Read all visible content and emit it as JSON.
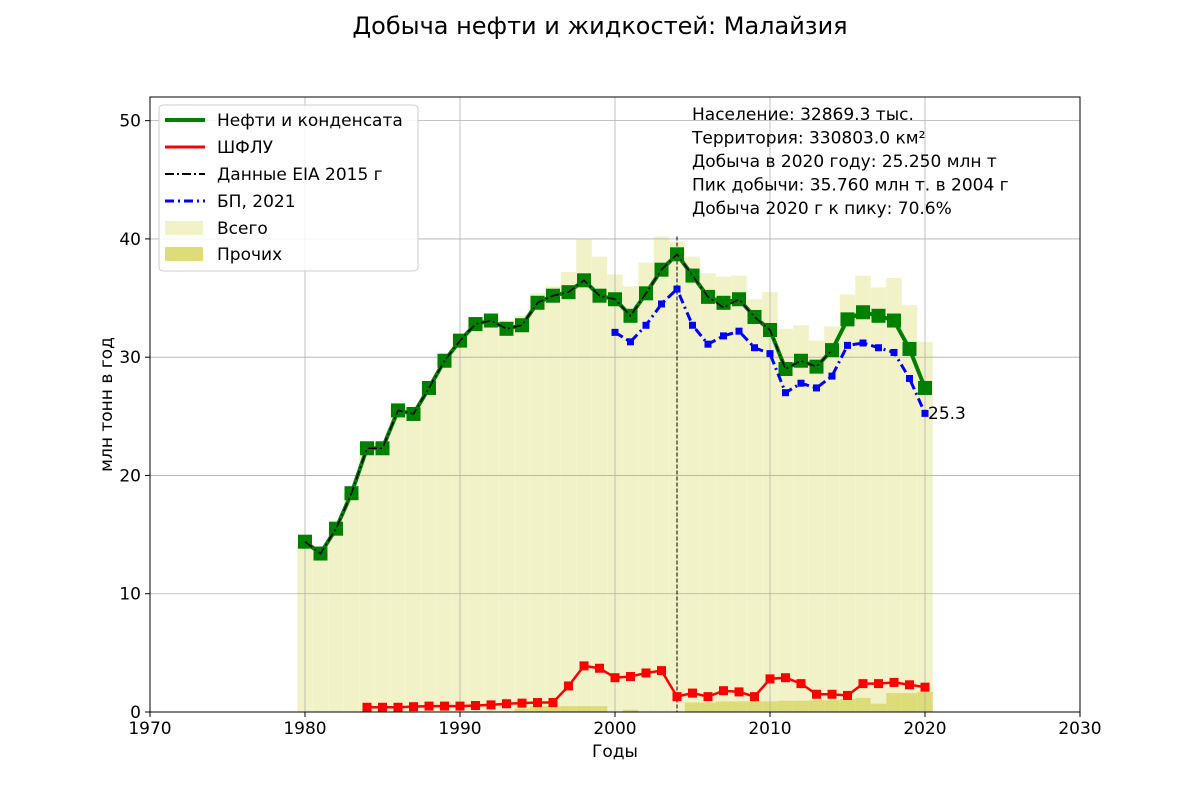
{
  "chart_data": {
    "type": "line",
    "title": "Добыча нефти и жидкостей: Малайзия",
    "xlabel": "Годы",
    "ylabel": "млн тонн в год",
    "xlim": [
      1970,
      2030
    ],
    "ylim": [
      0,
      52
    ],
    "xticks": [
      "1970",
      "1980",
      "1990",
      "2000",
      "2010",
      "2020",
      "2030"
    ],
    "yticks": [
      "0",
      "10",
      "20",
      "30",
      "40",
      "50"
    ],
    "grid": true,
    "legend_position": "top-left",
    "colors": {
      "oil": "#008000",
      "ngl": "#ff0000",
      "eia": "#000000",
      "bp": "#0000ff",
      "total": "#f2f2c8",
      "other": "#dcdc78",
      "peak_line": "#000000"
    },
    "legend": [
      {
        "key": "oil",
        "label": "Нефти и конденсата"
      },
      {
        "key": "ngl",
        "label": "ШФЛУ"
      },
      {
        "key": "eia",
        "label": "Данные EIA 2015 г"
      },
      {
        "key": "bp",
        "label": "БП, 2021"
      },
      {
        "key": "total",
        "label": "Всего"
      },
      {
        "key": "other",
        "label": "Прочих"
      }
    ],
    "info_lines": [
      "Население: 32869.3 тыс.",
      "Территория: 330803.0 км²",
      "Добыча в 2020 году: 25.250 млн т",
      "Пик добычи: 35.760 млн т. в 2004 г",
      "Добыча 2020 г к пику: 70.6%"
    ],
    "annotation": {
      "x": 2020,
      "y": 25.3,
      "text": "25.3"
    },
    "peak_year": 2004,
    "series": {
      "oil": {
        "x": [
          1980,
          1981,
          1982,
          1983,
          1984,
          1985,
          1986,
          1987,
          1988,
          1989,
          1990,
          1991,
          1992,
          1993,
          1994,
          1995,
          1996,
          1997,
          1998,
          1999,
          2000,
          2001,
          2002,
          2003,
          2004,
          2005,
          2006,
          2007,
          2008,
          2009,
          2010,
          2011,
          2012,
          2013,
          2014,
          2015,
          2016,
          2017,
          2018,
          2019,
          2020
        ],
        "values": [
          14.4,
          13.4,
          15.5,
          18.5,
          22.3,
          22.3,
          25.5,
          25.2,
          27.4,
          29.7,
          31.4,
          32.8,
          33.1,
          32.4,
          32.7,
          34.6,
          35.2,
          35.5,
          36.5,
          35.2,
          34.9,
          33.5,
          35.4,
          37.4,
          38.7,
          36.9,
          35.1,
          34.6,
          34.9,
          33.4,
          32.3,
          29.0,
          29.7,
          29.2,
          30.6,
          33.2,
          33.8,
          33.5,
          33.1,
          30.7,
          27.4
        ]
      },
      "eia": {
        "x": [
          1980,
          1981,
          1982,
          1983,
          1984,
          1985,
          1986,
          1987,
          1988,
          1989,
          1990,
          1991,
          1992,
          1993,
          1994,
          1995,
          1996,
          1997,
          1998,
          1999,
          2000,
          2001,
          2002,
          2003,
          2004,
          2005,
          2006,
          2007,
          2008,
          2009,
          2010,
          2011,
          2012,
          2013,
          2014
        ],
        "values": [
          14.4,
          13.4,
          15.5,
          18.5,
          22.3,
          22.3,
          25.5,
          25.2,
          27.4,
          29.7,
          31.4,
          32.8,
          33.1,
          32.4,
          32.7,
          34.6,
          35.2,
          35.5,
          36.5,
          35.2,
          34.9,
          33.5,
          35.4,
          37.4,
          38.7,
          36.9,
          35.1,
          34.2,
          34.9,
          33.4,
          32.3,
          29.0,
          29.7,
          29.2,
          30.6
        ]
      },
      "bp": {
        "x": [
          2000,
          2001,
          2002,
          2003,
          2004,
          2005,
          2006,
          2007,
          2008,
          2009,
          2010,
          2011,
          2012,
          2013,
          2014,
          2015,
          2016,
          2017,
          2018,
          2019,
          2020
        ],
        "values": [
          32.1,
          31.3,
          32.7,
          34.5,
          35.76,
          32.7,
          31.1,
          31.8,
          32.2,
          30.8,
          30.3,
          27.0,
          27.8,
          27.4,
          28.4,
          31.0,
          31.2,
          30.8,
          30.4,
          28.2,
          25.25
        ]
      },
      "ngl": {
        "x": [
          1984,
          1985,
          1986,
          1987,
          1988,
          1989,
          1990,
          1991,
          1992,
          1993,
          1994,
          1995,
          1996,
          1997,
          1998,
          1999,
          2000,
          2001,
          2002,
          2003,
          2004,
          2005,
          2006,
          2007,
          2008,
          2009,
          2010,
          2011,
          2012,
          2013,
          2014,
          2015,
          2016,
          2017,
          2018,
          2019,
          2020
        ],
        "values": [
          0.4,
          0.4,
          0.4,
          0.45,
          0.5,
          0.5,
          0.5,
          0.55,
          0.6,
          0.7,
          0.75,
          0.8,
          0.8,
          2.2,
          3.9,
          3.7,
          2.9,
          3.0,
          3.3,
          3.5,
          1.3,
          1.6,
          1.3,
          1.8,
          1.7,
          1.3,
          2.8,
          2.9,
          2.4,
          1.5,
          1.5,
          1.4,
          2.4,
          2.4,
          2.5,
          2.3,
          2.1
        ]
      },
      "total": {
        "x": [
          1980,
          1981,
          1982,
          1983,
          1984,
          1985,
          1986,
          1987,
          1988,
          1989,
          1990,
          1991,
          1992,
          1993,
          1994,
          1995,
          1996,
          1997,
          1998,
          1999,
          2000,
          2001,
          2002,
          2003,
          2004,
          2005,
          2006,
          2007,
          2008,
          2009,
          2010,
          2011,
          2012,
          2013,
          2014,
          2015,
          2016,
          2017,
          2018,
          2019,
          2020
        ],
        "values": [
          14.4,
          13.4,
          15.5,
          18.5,
          22.7,
          22.7,
          25.9,
          25.7,
          27.9,
          30.2,
          31.9,
          33.4,
          33.7,
          33.1,
          33.5,
          35.4,
          36.0,
          37.2,
          40.0,
          38.5,
          37.0,
          36.0,
          38.0,
          40.2,
          39.8,
          38.5,
          37.1,
          36.8,
          36.9,
          34.9,
          35.5,
          32.4,
          32.7,
          31.4,
          32.6,
          35.3,
          36.9,
          35.9,
          36.7,
          34.4,
          31.3
        ]
      },
      "other": {
        "x": [
          1980,
          1981,
          1982,
          1983,
          1984,
          1985,
          1986,
          1987,
          1988,
          1989,
          1990,
          1991,
          1992,
          1993,
          1994,
          1995,
          1996,
          1997,
          1998,
          1999,
          2000,
          2001,
          2002,
          2003,
          2004,
          2005,
          2006,
          2007,
          2008,
          2009,
          2010,
          2011,
          2012,
          2013,
          2014,
          2015,
          2016,
          2017,
          2018,
          2019,
          2020
        ],
        "values": [
          0,
          0,
          0,
          0,
          0,
          0,
          0,
          0,
          0,
          0,
          0,
          0,
          0,
          0,
          0.3,
          0.5,
          0.5,
          0.5,
          0.5,
          0.5,
          0,
          0.2,
          0,
          0,
          0,
          0.8,
          0.8,
          0.9,
          0.9,
          0.9,
          0.9,
          0.95,
          0.95,
          1.0,
          1.0,
          1.1,
          1.2,
          0.7,
          1.6,
          1.6,
          1.7
        ]
      }
    }
  }
}
